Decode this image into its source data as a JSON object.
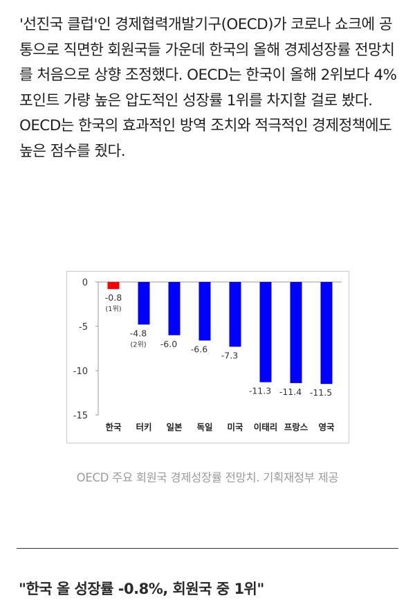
{
  "article": {
    "paragraph": "'선진국 클럽'인 경제협력개발기구(OECD)가 코로나 쇼크에 공통으로 직면한 회원국들 가운데 한국의 올해 경제성장률 전망치를 처음으로 상향 조정했다. OECD는 한국이 올해 2위보다 4%포인트 가량 높은 압도적인 성장률 1위를 차지할 걸로 봤다. OECD는 한국의 효과적인 방역 조치와 적극적인 경제정책에도 높은 점수를 줬다."
  },
  "figure": {
    "caption": "OECD 주요 회원국 경제성장률 전망치. 기획재정부 제공"
  },
  "subhead": "\"한국 올 성장률 -0.8%, 회원국 중 1위\"",
  "chart_data": {
    "type": "bar",
    "categories": [
      "한국",
      "터키",
      "일본",
      "독일",
      "미국",
      "이태리",
      "프랑스",
      "영국"
    ],
    "values": [
      -0.8,
      -4.8,
      -6.0,
      -6.6,
      -7.3,
      -11.3,
      -11.4,
      -11.5
    ],
    "value_labels": [
      "-0.8",
      "-4.8",
      "-6.0",
      "-6.6",
      "-7.3",
      "-11.3",
      "-11.4",
      "-11.5"
    ],
    "rank_labels": [
      "(1위)",
      "(2위)",
      "",
      "",
      "",
      "",
      "",
      ""
    ],
    "ylim": [
      -15,
      0
    ],
    "yticks": [
      0,
      -5,
      -10,
      -15
    ],
    "ytick_labels": [
      "0",
      "-5",
      "-10",
      "-15"
    ],
    "title": "",
    "xlabel": "",
    "ylabel": "",
    "grid": false,
    "colors": {
      "highlight": "#ff0000",
      "default": "#0000ff",
      "axis": "#999999"
    }
  }
}
